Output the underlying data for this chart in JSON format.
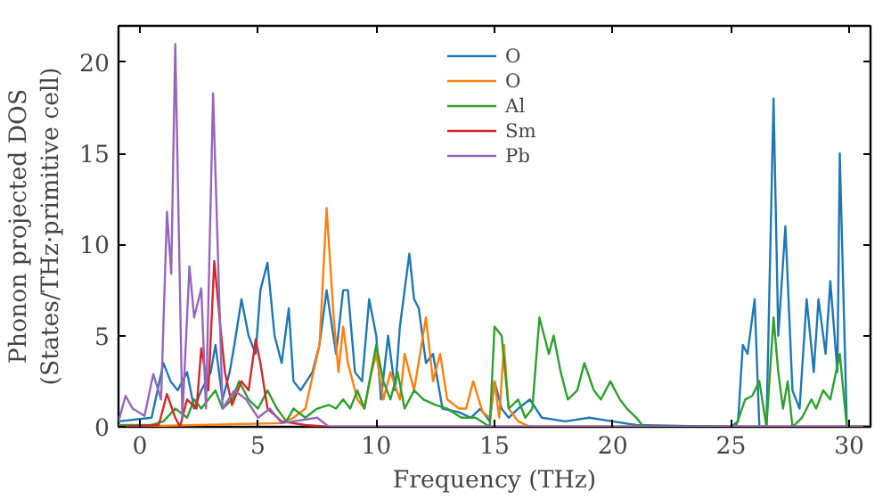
{
  "chart_data": {
    "type": "line",
    "xlabel": "Frequency (THz)",
    "ylabel": "Phonon projected DOS\n(States/THz·primitive cell)",
    "xlim": [
      -0.9,
      30.9
    ],
    "ylim": [
      0,
      22
    ],
    "xticks": [
      0,
      5,
      10,
      15,
      20,
      25,
      30
    ],
    "yticks": [
      0,
      5,
      10,
      15,
      20
    ],
    "grid": false,
    "legend": "top",
    "series": [
      {
        "name": "O",
        "color": "#1f77b4",
        "x": [
          -0.9,
          0.5,
          1,
          1.3,
          1.6,
          2,
          2.3,
          2.6,
          3,
          3.2,
          3.5,
          3.8,
          4,
          4.3,
          4.6,
          4.9,
          5.1,
          5.4,
          5.7,
          6,
          6.3,
          6.5,
          6.8,
          7.3,
          7.6,
          7.9,
          8.3,
          8.6,
          8.8,
          9.1,
          9.4,
          9.7,
          10,
          10.2,
          10.5,
          10.8,
          11,
          11.4,
          11.6,
          11.8,
          12.1,
          12.4,
          12.8,
          13.5,
          14,
          14.4,
          14.8,
          15,
          15.3,
          15.6,
          16,
          16.5,
          17,
          18,
          19,
          20,
          21,
          25,
          25.3,
          25.5,
          25.7,
          26,
          26.2,
          26.5,
          26.8,
          27,
          27.3,
          27.6,
          27.9,
          28.2,
          28.5,
          28.7,
          29,
          29.2,
          29.5,
          29.6,
          29.9,
          30.9
        ],
        "values": [
          0.3,
          0.5,
          3.5,
          2.5,
          2,
          3,
          1,
          2,
          3,
          4.5,
          1.5,
          3,
          4.5,
          7,
          5,
          4,
          7.5,
          9,
          5,
          3.5,
          6.5,
          2.5,
          2,
          3,
          4.5,
          7.5,
          4,
          7.5,
          7.5,
          3,
          2.5,
          7,
          5,
          1.5,
          5,
          2,
          5.5,
          9.5,
          7,
          6.5,
          3.5,
          4,
          1,
          0.8,
          0.5,
          1,
          0.3,
          2.5,
          1,
          0.5,
          1,
          1.5,
          0.5,
          0.3,
          0.5,
          0.3,
          0.1,
          0,
          0.3,
          4.5,
          4,
          7,
          0,
          0,
          18,
          5,
          11,
          2,
          1,
          7,
          3,
          7,
          4,
          8,
          3,
          15,
          0,
          0
        ]
      },
      {
        "name": "O",
        "color": "#ff7f0e",
        "x": [
          -0.9,
          6,
          6.5,
          7,
          7.6,
          7.9,
          8.2,
          8.4,
          8.6,
          8.8,
          9.2,
          9.5,
          9.8,
          10,
          10.3,
          10.6,
          11,
          11.2,
          11.6,
          12.1,
          12.4,
          12.7,
          13,
          13.5,
          13.8,
          14.1,
          14.5,
          14.8,
          15,
          15.2,
          15.4,
          15.6,
          16,
          16.5,
          30.9
        ],
        "values": [
          0,
          0.2,
          0.5,
          1,
          4.5,
          12,
          6,
          3,
          5.5,
          3.5,
          1.5,
          1,
          3,
          4,
          1.5,
          3,
          1.5,
          4,
          2,
          6,
          2.5,
          4,
          1.5,
          1,
          1,
          2.5,
          0.8,
          0.5,
          2.5,
          0.5,
          4.5,
          1,
          0.3,
          0,
          0
        ]
      },
      {
        "name": "Al",
        "color": "#2ca02c",
        "x": [
          -0.9,
          0.5,
          1,
          1.5,
          2,
          2.3,
          2.6,
          3.2,
          3.5,
          3.9,
          4.2,
          4.6,
          5,
          5.4,
          5.8,
          6.2,
          6.5,
          7,
          7.5,
          8,
          8.3,
          8.6,
          8.9,
          9.2,
          9.5,
          10,
          10.3,
          10.6,
          10.9,
          11.2,
          11.6,
          12,
          12.5,
          13,
          13.6,
          14.2,
          14.8,
          15,
          15.3,
          15.6,
          16,
          16.3,
          16.6,
          16.9,
          17.3,
          17.5,
          17.8,
          18.1,
          18.5,
          18.8,
          19.2,
          19.5,
          19.9,
          20.3,
          20.6,
          21,
          21.3,
          25.2,
          25.6,
          25.9,
          26.2,
          26.5,
          26.8,
          27,
          27.2,
          27.4,
          27.6,
          28,
          28.4,
          28.6,
          28.9,
          29.2,
          29.6,
          29.9,
          30.9
        ],
        "values": [
          0.1,
          0.1,
          0.3,
          1,
          0.5,
          1.5,
          1,
          2,
          1,
          1.5,
          2.5,
          1.5,
          1,
          2,
          1,
          0.3,
          1,
          0.5,
          1,
          1.2,
          1,
          1.5,
          1,
          2,
          1,
          4.5,
          2.5,
          1.5,
          3,
          1,
          2,
          1.5,
          1.2,
          1,
          0.5,
          0.5,
          0,
          5.5,
          5,
          1,
          1.5,
          0.5,
          1,
          6,
          4,
          5,
          3,
          1.5,
          2,
          3.5,
          2,
          1.5,
          2.5,
          1.5,
          1,
          0.5,
          0,
          0,
          1.5,
          1.7,
          2.5,
          0,
          6,
          3,
          1,
          2.5,
          0,
          0.5,
          1.5,
          1,
          2,
          1.5,
          4,
          0,
          0
        ]
      },
      {
        "name": "Sm",
        "color": "#d62728",
        "x": [
          -0.9,
          0.8,
          1.15,
          1.5,
          1.7,
          2,
          2.4,
          2.6,
          2.9,
          3.15,
          3.4,
          3.6,
          3.9,
          4.3,
          4.6,
          4.9,
          5.1,
          5.4,
          6,
          7,
          8,
          30.9
        ],
        "values": [
          0,
          0.1,
          1.8,
          0.5,
          0,
          1.5,
          1,
          4.3,
          2,
          9.1,
          5.6,
          3,
          1.2,
          2.5,
          2,
          4.8,
          3.5,
          1,
          0.3,
          0.1,
          0,
          0
        ]
      },
      {
        "name": "Pb",
        "color": "#9467bd",
        "x": [
          -0.9,
          -0.6,
          -0.3,
          0.2,
          0.57,
          0.9,
          1.15,
          1.33,
          1.5,
          1.8,
          2.1,
          2.3,
          2.6,
          2.8,
          3.1,
          3.5,
          4,
          4.5,
          5,
          5.5,
          6,
          7.5,
          8,
          30.9
        ],
        "values": [
          0.3,
          1.7,
          1,
          0.6,
          2.9,
          1.5,
          11.8,
          8.4,
          21,
          0.5,
          8.8,
          6,
          7.6,
          1,
          18.3,
          1,
          2,
          1.5,
          0.5,
          1,
          0.2,
          0.5,
          0,
          0
        ]
      }
    ]
  }
}
